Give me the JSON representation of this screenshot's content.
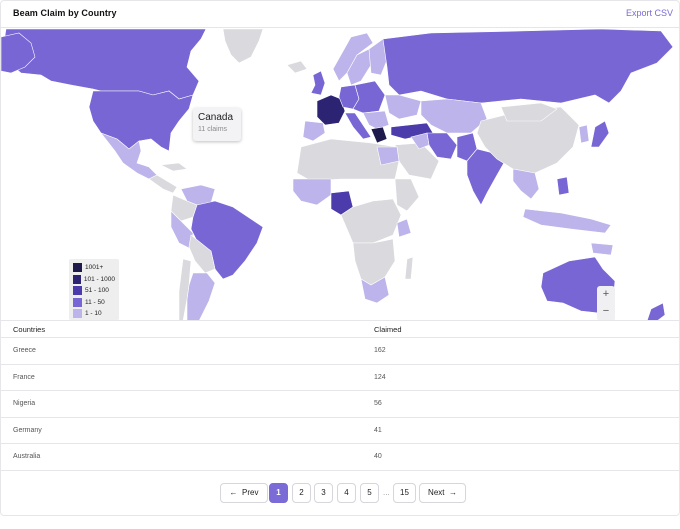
{
  "header": {
    "title": "Beam Claim by Country",
    "export_label": "Export CSV"
  },
  "colors": {
    "tier_1001_plus": "#1e1a4c",
    "tier_101_1000": "#2c2473",
    "tier_51_100": "#4b3bab",
    "tier_11_50": "#7766d4",
    "tier_1_10": "#bcb4ea",
    "no_data": "#d9d9de",
    "accent": "#7a6bd6"
  },
  "tooltip": {
    "country": "Canada",
    "value": "11 claims"
  },
  "legend": [
    {
      "label": "1001+",
      "color": "#1e1a4c"
    },
    {
      "label": "101 - 1000",
      "color": "#2c2473"
    },
    {
      "label": "51 - 100",
      "color": "#4b3bab"
    },
    {
      "label": "11 - 50",
      "color": "#7766d4"
    },
    {
      "label": "1 - 10",
      "color": "#bcb4ea"
    }
  ],
  "zoom": {
    "in": "+",
    "out": "−"
  },
  "table": {
    "headers": {
      "country": "Countries",
      "claimed": "Claimed"
    },
    "rows": [
      {
        "country": "Greece",
        "claimed": "162"
      },
      {
        "country": "France",
        "claimed": "124"
      },
      {
        "country": "Nigeria",
        "claimed": "56"
      },
      {
        "country": "Germany",
        "claimed": "41"
      },
      {
        "country": "Australia",
        "claimed": "40"
      }
    ]
  },
  "pagination": {
    "prev": "Prev",
    "next": "Next",
    "prev_arrow": "←",
    "next_arrow": "→",
    "pages": [
      "1",
      "2",
      "3",
      "4",
      "5"
    ],
    "ellipsis": "...",
    "last": "15",
    "current": "1"
  }
}
